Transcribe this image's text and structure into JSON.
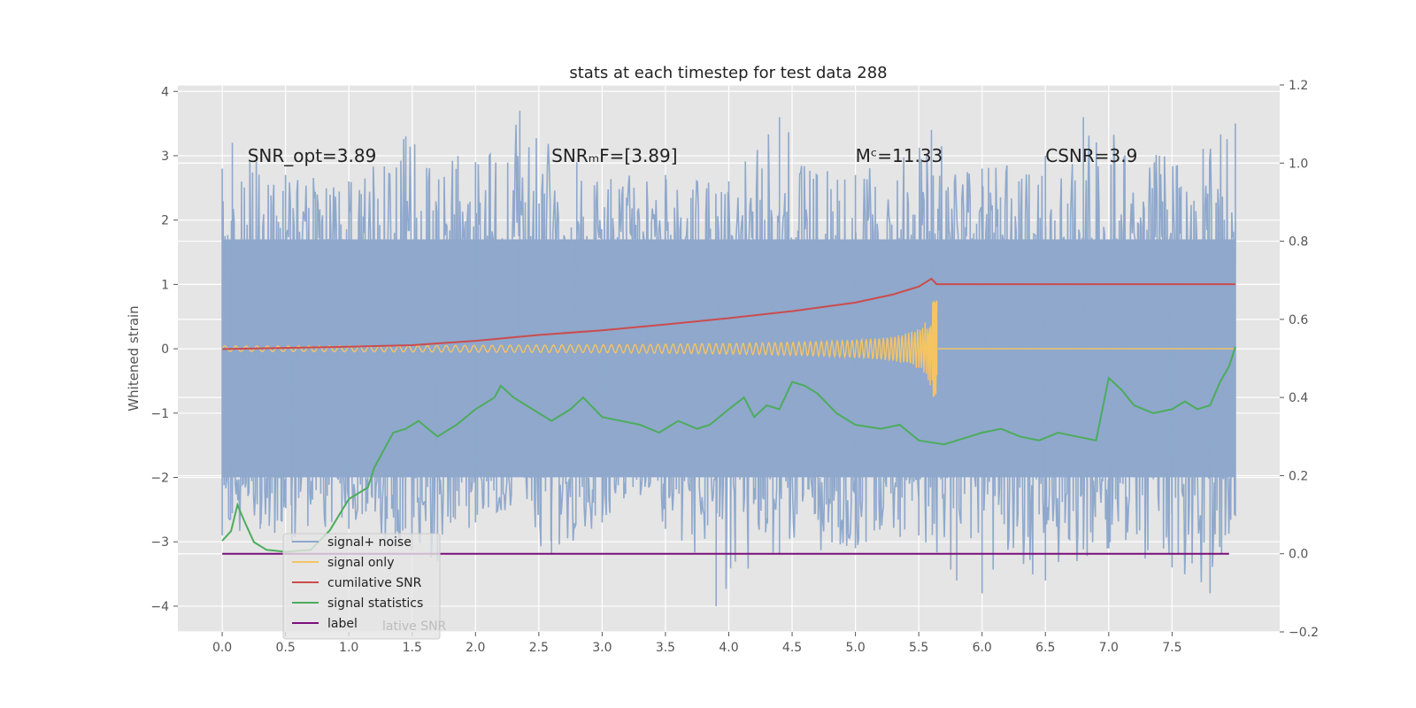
{
  "chart_data": {
    "type": "line",
    "title": "stats at each timestep for test data 288",
    "ylabel": "Whitened strain",
    "xlim": [
      -0.35,
      8.35
    ],
    "ylim_left": [
      -4.4,
      4.1
    ],
    "ylim_right": [
      -0.2,
      1.2
    ],
    "x_ticks": [
      0.0,
      0.5,
      1.0,
      1.5,
      2.0,
      2.5,
      3.0,
      3.5,
      4.0,
      4.5,
      5.0,
      5.5,
      6.0,
      6.5,
      7.0,
      7.5
    ],
    "x_tick_labels": [
      "0.0",
      "0.5",
      "1.0",
      "1.5",
      "2.0",
      "2.5",
      "3.0",
      "3.5",
      "4.0",
      "4.5",
      "5.0",
      "5.5",
      "6.0",
      "6.5",
      "7.0",
      "7.5"
    ],
    "y_left_ticks": [
      4,
      3,
      2,
      1,
      0,
      -1,
      -2,
      -3,
      -4
    ],
    "y_left_tick_labels": [
      "4",
      "3",
      "2",
      "1",
      "0",
      "−1",
      "−2",
      "−3",
      "−4"
    ],
    "y_right_ticks": [
      1.2,
      1.0,
      0.8,
      0.6,
      0.4,
      0.2,
      0.0,
      -0.2
    ],
    "y_right_tick_labels": [
      "1.2",
      "1.0",
      "0.8",
      "0.6",
      "0.4",
      "0.2",
      "0.0",
      "−0.2"
    ],
    "annotations": [
      {
        "id": "snr-opt",
        "text": "SNR_opt=3.89",
        "x": 0.2,
        "y": 3.0
      },
      {
        "id": "snr-mf",
        "text": "SNRₘF=[3.89]",
        "x": 2.6,
        "y": 3.0
      },
      {
        "id": "mc",
        "text": "Mᶜ=11.33",
        "x": 5.0,
        "y": 3.0
      },
      {
        "id": "csnr",
        "text": "CSNR=3.9",
        "x": 6.5,
        "y": 3.0
      }
    ],
    "legend": {
      "location": "lower-left",
      "entries": [
        {
          "label": "signal+ noise",
          "color": "#8fa8cc"
        },
        {
          "label": "signal only",
          "color": "#f5c463"
        },
        {
          "label": "cumilative SNR",
          "color": "#cc4c4c"
        },
        {
          "label": "signal statistics",
          "color": "#4dac5c"
        },
        {
          "label": "label",
          "color": "#7b0f7b"
        }
      ],
      "obscured_text": "lative SNR"
    },
    "series": [
      {
        "name": "signal+ noise",
        "axis": "left",
        "style": "noise-band",
        "color": "#8fa8cc",
        "x_range": [
          0.0,
          8.0
        ],
        "dense_band": [
          -2.0,
          1.7
        ],
        "upper_envelope": [
          [
            0.0,
            2.8
          ],
          [
            0.08,
            3.2
          ],
          [
            0.5,
            2.7
          ],
          [
            1.0,
            2.6
          ],
          [
            1.45,
            3.3
          ],
          [
            2.0,
            2.9
          ],
          [
            2.35,
            3.7
          ],
          [
            2.8,
            2.9
          ],
          [
            3.5,
            2.7
          ],
          [
            4.0,
            2.6
          ],
          [
            4.4,
            3.6
          ],
          [
            5.0,
            2.7
          ],
          [
            5.6,
            3.4
          ],
          [
            6.0,
            2.8
          ],
          [
            6.5,
            3.0
          ],
          [
            6.8,
            3.6
          ],
          [
            7.4,
            3.0
          ],
          [
            8.0,
            3.5
          ]
        ],
        "lower_envelope": [
          [
            0.0,
            -2.9
          ],
          [
            0.3,
            -2.8
          ],
          [
            0.55,
            -3.0
          ],
          [
            1.0,
            -2.8
          ],
          [
            1.7,
            -3.3
          ],
          [
            2.0,
            -2.7
          ],
          [
            2.6,
            -3.2
          ],
          [
            3.0,
            -2.7
          ],
          [
            3.5,
            -2.8
          ],
          [
            3.9,
            -4.0
          ],
          [
            4.4,
            -3.2
          ],
          [
            5.0,
            -3.1
          ],
          [
            5.5,
            -2.9
          ],
          [
            5.8,
            -3.6
          ],
          [
            6.0,
            -3.8
          ],
          [
            6.5,
            -3.6
          ],
          [
            7.0,
            -3.1
          ],
          [
            7.5,
            -3.4
          ],
          [
            7.8,
            -3.8
          ],
          [
            8.0,
            -2.6
          ]
        ]
      },
      {
        "name": "signal only",
        "axis": "left",
        "style": "chirp",
        "color": "#f5c463",
        "x_range": [
          0.0,
          8.0
        ],
        "merger_x": 5.64,
        "peak_amplitude": 0.75
      },
      {
        "name": "cumilative SNR",
        "axis": "right",
        "color": "#cc4c4c",
        "points": [
          [
            0.0,
            0.524
          ],
          [
            0.5,
            0.527
          ],
          [
            1.0,
            0.53
          ],
          [
            1.5,
            0.534
          ],
          [
            2.0,
            0.545
          ],
          [
            2.5,
            0.56
          ],
          [
            3.0,
            0.572
          ],
          [
            3.5,
            0.587
          ],
          [
            4.0,
            0.603
          ],
          [
            4.5,
            0.621
          ],
          [
            5.0,
            0.643
          ],
          [
            5.3,
            0.664
          ],
          [
            5.5,
            0.684
          ],
          [
            5.6,
            0.704
          ],
          [
            5.64,
            0.69
          ],
          [
            8.0,
            0.69
          ]
        ]
      },
      {
        "name": "signal statistics",
        "axis": "right",
        "color": "#4dac5c",
        "points": [
          [
            0.0,
            0.033
          ],
          [
            0.07,
            0.058
          ],
          [
            0.12,
            0.125
          ],
          [
            0.18,
            0.08
          ],
          [
            0.25,
            0.03
          ],
          [
            0.35,
            0.01
          ],
          [
            0.5,
            0.005
          ],
          [
            0.7,
            0.01
          ],
          [
            0.85,
            0.06
          ],
          [
            1.0,
            0.14
          ],
          [
            1.15,
            0.17
          ],
          [
            1.2,
            0.22
          ],
          [
            1.35,
            0.31
          ],
          [
            1.45,
            0.32
          ],
          [
            1.55,
            0.34
          ],
          [
            1.7,
            0.3
          ],
          [
            1.85,
            0.33
          ],
          [
            2.0,
            0.37
          ],
          [
            2.15,
            0.4
          ],
          [
            2.2,
            0.43
          ],
          [
            2.3,
            0.4
          ],
          [
            2.45,
            0.37
          ],
          [
            2.6,
            0.34
          ],
          [
            2.75,
            0.37
          ],
          [
            2.85,
            0.4
          ],
          [
            3.0,
            0.35
          ],
          [
            3.15,
            0.34
          ],
          [
            3.3,
            0.33
          ],
          [
            3.45,
            0.31
          ],
          [
            3.6,
            0.34
          ],
          [
            3.75,
            0.32
          ],
          [
            3.85,
            0.33
          ],
          [
            4.0,
            0.37
          ],
          [
            4.12,
            0.4
          ],
          [
            4.2,
            0.35
          ],
          [
            4.3,
            0.38
          ],
          [
            4.4,
            0.37
          ],
          [
            4.5,
            0.44
          ],
          [
            4.6,
            0.43
          ],
          [
            4.7,
            0.41
          ],
          [
            4.85,
            0.36
          ],
          [
            5.0,
            0.33
          ],
          [
            5.2,
            0.32
          ],
          [
            5.35,
            0.33
          ],
          [
            5.5,
            0.29
          ],
          [
            5.7,
            0.28
          ],
          [
            5.9,
            0.3
          ],
          [
            6.0,
            0.31
          ],
          [
            6.15,
            0.32
          ],
          [
            6.3,
            0.3
          ],
          [
            6.45,
            0.29
          ],
          [
            6.6,
            0.31
          ],
          [
            6.75,
            0.3
          ],
          [
            6.9,
            0.29
          ],
          [
            7.0,
            0.45
          ],
          [
            7.1,
            0.42
          ],
          [
            7.2,
            0.38
          ],
          [
            7.35,
            0.36
          ],
          [
            7.5,
            0.37
          ],
          [
            7.6,
            0.39
          ],
          [
            7.7,
            0.37
          ],
          [
            7.8,
            0.38
          ],
          [
            7.88,
            0.44
          ],
          [
            7.95,
            0.48
          ],
          [
            8.0,
            0.53
          ]
        ]
      },
      {
        "name": "label",
        "axis": "right",
        "color": "#7b0f7b",
        "points": [
          [
            0.0,
            0.0
          ],
          [
            7.95,
            0.0
          ]
        ]
      }
    ]
  }
}
